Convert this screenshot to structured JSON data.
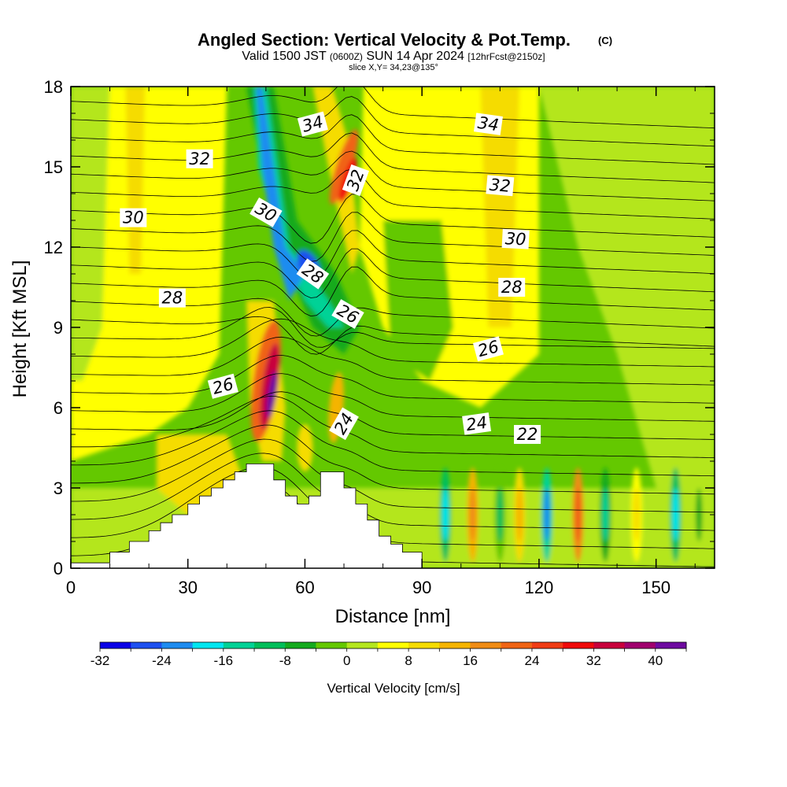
{
  "header": {
    "title": "Angled Section: Vertical Velocity & Pot.Temp.",
    "title_mark": "(C)",
    "valid_pre": "Valid 1500 JST",
    "valid_z": "(0600Z)",
    "valid_post": "SUN 14 Apr 2024",
    "fcst": "[12hrFcst@2150z]",
    "slice": "slice X,Y= 34,23@135°"
  },
  "chart_data": {
    "type": "heatmap",
    "xlabel": "Distance [nm]",
    "ylabel": "Height [Kft MSL]",
    "xlim": [
      0,
      165
    ],
    "ylim": [
      0,
      18
    ],
    "x_ticks": [
      0,
      30,
      60,
      90,
      120,
      150
    ],
    "x_tick_labels": [
      "0",
      "30",
      "60",
      "90",
      "120",
      "150"
    ],
    "y_ticks": [
      0,
      3,
      6,
      9,
      12,
      15,
      18
    ],
    "y_tick_labels": [
      "0",
      "3",
      "6",
      "9",
      "12",
      "15",
      "18"
    ],
    "colorbar": {
      "label": "Vertical Velocity [cm/s]",
      "min": -32,
      "max": 44,
      "step": 4,
      "tick_values": [
        -32,
        -24,
        -16,
        -8,
        0,
        8,
        16,
        24,
        32,
        40
      ],
      "tick_labels": [
        "-32",
        "-24",
        "-16",
        "-8",
        "0",
        "8",
        "16",
        "24",
        "32",
        "40"
      ],
      "colors": [
        "#0a00e6",
        "#1e50f0",
        "#1e8cf0",
        "#00e6f0",
        "#00d296",
        "#00be5a",
        "#14aa1e",
        "#64c800",
        "#b4e61e",
        "#ffff00",
        "#f5dc00",
        "#f5b400",
        "#f08c14",
        "#f06414",
        "#f03c14",
        "#f00a0a",
        "#c8003c",
        "#a0006e",
        "#6e0aa0"
      ]
    },
    "terrain_profile": [
      [
        0,
        0.2
      ],
      [
        10,
        0.2
      ],
      [
        10,
        0.6
      ],
      [
        15,
        0.6
      ],
      [
        15,
        1.0
      ],
      [
        20,
        1.0
      ],
      [
        20,
        1.4
      ],
      [
        23,
        1.4
      ],
      [
        23,
        1.7
      ],
      [
        26,
        1.7
      ],
      [
        26,
        2.0
      ],
      [
        30,
        2.0
      ],
      [
        30,
        2.4
      ],
      [
        33,
        2.4
      ],
      [
        33,
        2.7
      ],
      [
        36,
        2.7
      ],
      [
        36,
        3.0
      ],
      [
        39,
        3.0
      ],
      [
        39,
        3.3
      ],
      [
        42,
        3.3
      ],
      [
        42,
        3.6
      ],
      [
        45,
        3.6
      ],
      [
        45,
        3.9
      ],
      [
        52,
        3.9
      ],
      [
        52,
        3.3
      ],
      [
        55,
        3.3
      ],
      [
        55,
        2.7
      ],
      [
        58,
        2.7
      ],
      [
        58,
        2.4
      ],
      [
        61,
        2.4
      ],
      [
        61,
        2.7
      ],
      [
        64,
        2.7
      ],
      [
        64,
        3.6
      ],
      [
        70,
        3.6
      ],
      [
        70,
        3.0
      ],
      [
        73,
        3.0
      ],
      [
        73,
        2.4
      ],
      [
        76,
        2.4
      ],
      [
        76,
        1.8
      ],
      [
        79,
        1.8
      ],
      [
        79,
        1.2
      ],
      [
        82,
        1.2
      ],
      [
        82,
        0.9
      ],
      [
        85,
        0.9
      ],
      [
        85,
        0.6
      ],
      [
        90,
        0.6
      ],
      [
        90,
        0
      ],
      [
        0,
        0
      ]
    ],
    "isentrope_labels": [
      {
        "text": "34",
        "x": 62,
        "y": 16.6,
        "rot": -15
      },
      {
        "text": "34",
        "x": 107,
        "y": 16.6,
        "rot": 8
      },
      {
        "text": "32",
        "x": 33,
        "y": 15.3,
        "rot": 0
      },
      {
        "text": "32",
        "x": 73,
        "y": 14.5,
        "rot": -70
      },
      {
        "text": "32",
        "x": 110,
        "y": 14.3,
        "rot": 5
      },
      {
        "text": "30",
        "x": 16,
        "y": 13.1,
        "rot": 0
      },
      {
        "text": "30",
        "x": 50,
        "y": 13.3,
        "rot": 30
      },
      {
        "text": "30",
        "x": 114,
        "y": 12.3,
        "rot": 3
      },
      {
        "text": "28",
        "x": 26,
        "y": 10.1,
        "rot": 0
      },
      {
        "text": "28",
        "x": 62,
        "y": 11.0,
        "rot": 35
      },
      {
        "text": "28",
        "x": 113,
        "y": 10.5,
        "rot": 0
      },
      {
        "text": "26",
        "x": 71,
        "y": 9.5,
        "rot": 30
      },
      {
        "text": "26",
        "x": 107,
        "y": 8.2,
        "rot": -15
      },
      {
        "text": "26",
        "x": 39,
        "y": 6.8,
        "rot": -15
      },
      {
        "text": "24",
        "x": 70,
        "y": 5.4,
        "rot": -60
      },
      {
        "text": "24",
        "x": 104,
        "y": 5.4,
        "rot": -8
      },
      {
        "text": "22",
        "x": 117,
        "y": 5.0,
        "rot": 0
      }
    ]
  }
}
